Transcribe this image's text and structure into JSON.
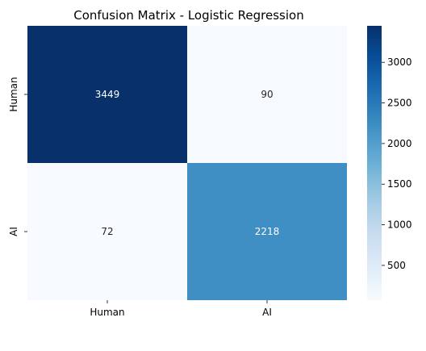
{
  "chart_data": {
    "type": "heatmap",
    "title": "Confusion Matrix - Logistic Regression",
    "xlabel": "",
    "ylabel": "",
    "x_categories": [
      "Human",
      "AI"
    ],
    "y_categories": [
      "Human",
      "AI"
    ],
    "values": [
      [
        3449,
        90
      ],
      [
        72,
        2218
      ]
    ],
    "colormap": "Blues",
    "color_min": 72,
    "color_max": 3449,
    "colorbar_ticks": [
      500,
      1000,
      1500,
      2000,
      2500,
      3000
    ],
    "colors": {
      "low": "#f7fbff",
      "high": "#08306b",
      "text_dark": "#262626",
      "text_light": "#ffffff"
    }
  }
}
